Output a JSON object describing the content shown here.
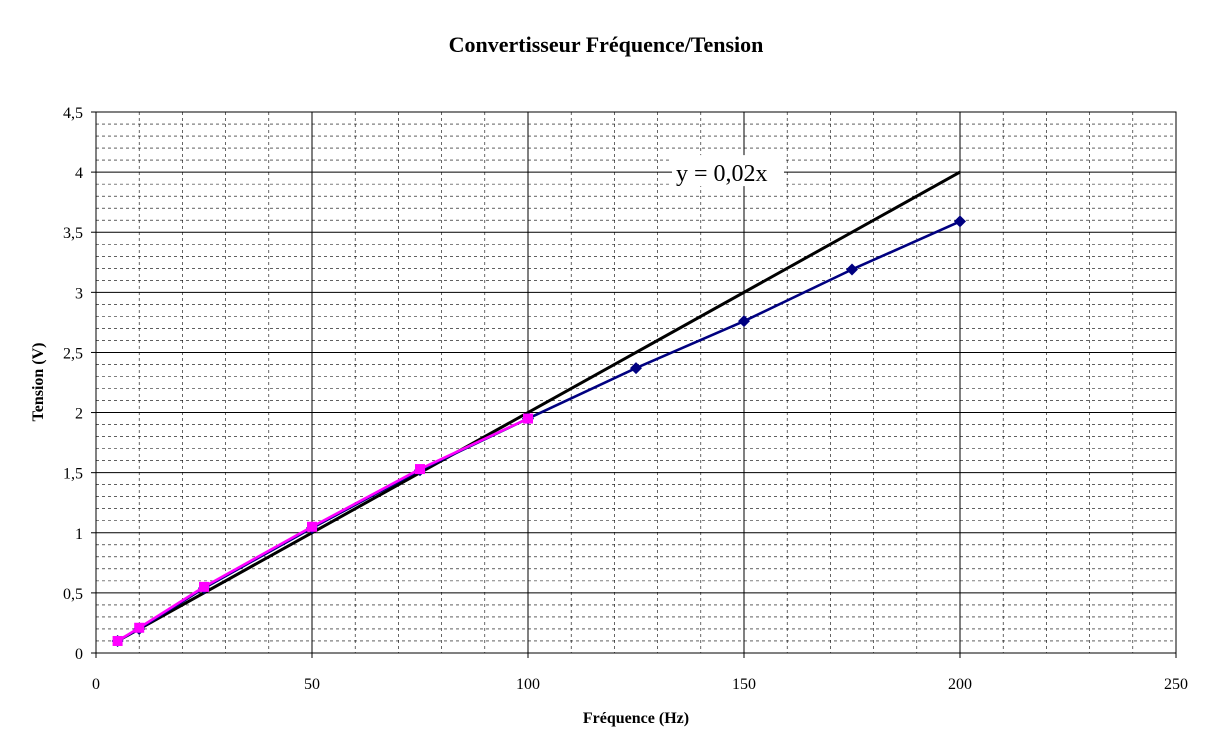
{
  "chart_data": {
    "type": "line",
    "title": "Convertisseur Fréquence/Tension",
    "xlabel": "Fréquence (Hz)",
    "ylabel": "Tension (V)",
    "xlim": [
      0,
      250
    ],
    "ylim": [
      0,
      4.5
    ],
    "x_ticks": [
      0,
      50,
      100,
      150,
      200,
      250
    ],
    "x_tick_labels": [
      "0",
      "50",
      "100",
      "150",
      "200",
      "250"
    ],
    "y_ticks": [
      0,
      0.5,
      1,
      1.5,
      2,
      2.5,
      3,
      3.5,
      4,
      4.5
    ],
    "y_tick_labels": [
      "0",
      "0,5",
      "1",
      "1,5",
      "2",
      "2,5",
      "3",
      "3,5",
      "4",
      "4,5"
    ],
    "grid": true,
    "series": [
      {
        "color": "#000080",
        "marker": "diamond",
        "x": [
          5,
          10,
          25,
          50,
          75,
          100,
          125,
          150,
          175,
          200
        ],
        "y": [
          0.1,
          0.2,
          0.54,
          1.04,
          1.52,
          1.95,
          2.37,
          2.76,
          3.19,
          3.59
        ]
      },
      {
        "color": "#ff00ff",
        "marker": "square",
        "x": [
          5,
          10,
          25,
          50,
          75,
          100
        ],
        "y": [
          0.1,
          0.21,
          0.55,
          1.05,
          1.53,
          1.95
        ]
      },
      {
        "color": "#000000",
        "marker": "none",
        "x": [
          5,
          200
        ],
        "y": [
          0.1,
          4.0
        ]
      }
    ],
    "annotations": [
      {
        "text": "y = 0,02x",
        "x": 150,
        "y": 4.0
      }
    ],
    "colors": {
      "plot_background": "#ffffff",
      "major_grid": "#000000",
      "minor_grid": "#000000"
    }
  }
}
